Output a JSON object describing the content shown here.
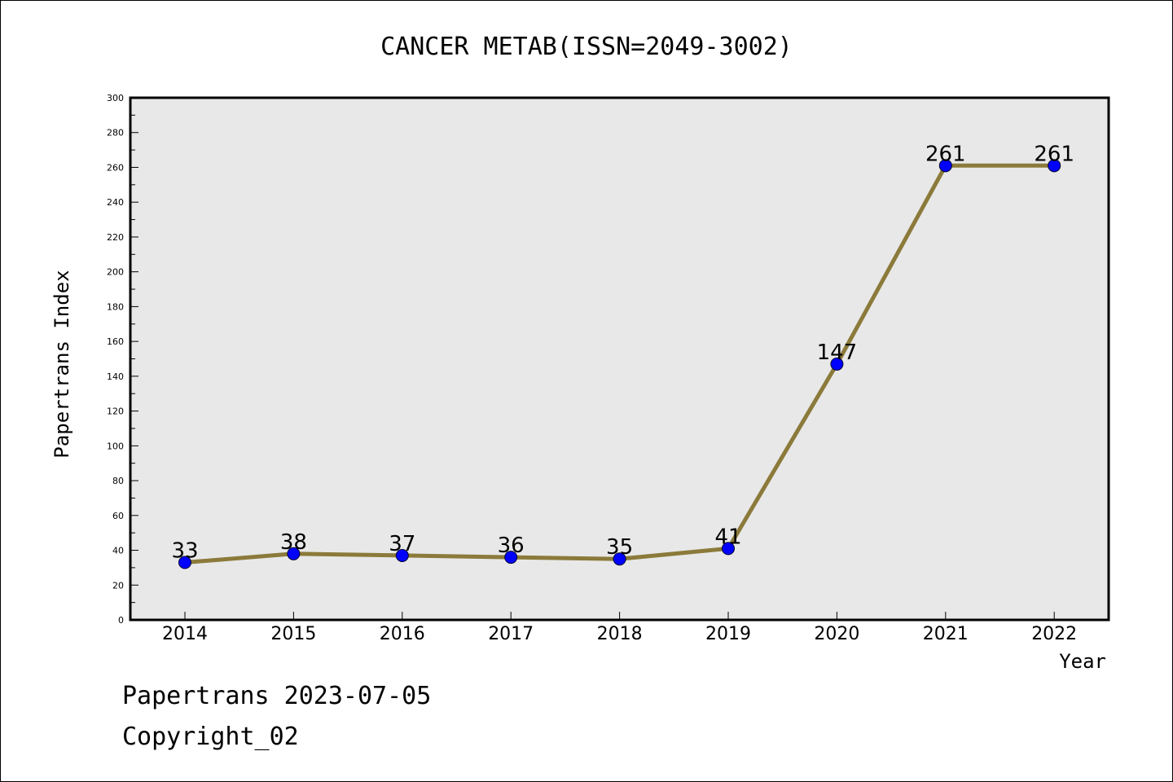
{
  "chart_data": {
    "type": "line",
    "title": "CANCER METAB(ISSN=2049-3002)",
    "xlabel": "Year",
    "ylabel": "Papertrans Index",
    "categories": [
      "2014",
      "2015",
      "2016",
      "2017",
      "2018",
      "2019",
      "2020",
      "2021",
      "2022"
    ],
    "values": [
      33,
      38,
      37,
      36,
      35,
      41,
      147,
      261,
      261
    ],
    "ylim": [
      0,
      300
    ],
    "yticks": [
      0,
      20,
      40,
      60,
      80,
      100,
      120,
      140,
      160,
      180,
      200,
      220,
      240,
      260,
      280,
      300
    ],
    "grid": false,
    "line_color": "#8b7a3a",
    "marker_color": "#0000ff",
    "plot_background": "#e8e8e8"
  },
  "footer": {
    "line1": "Papertrans 2023-07-05",
    "line2": "Copyright_02"
  }
}
